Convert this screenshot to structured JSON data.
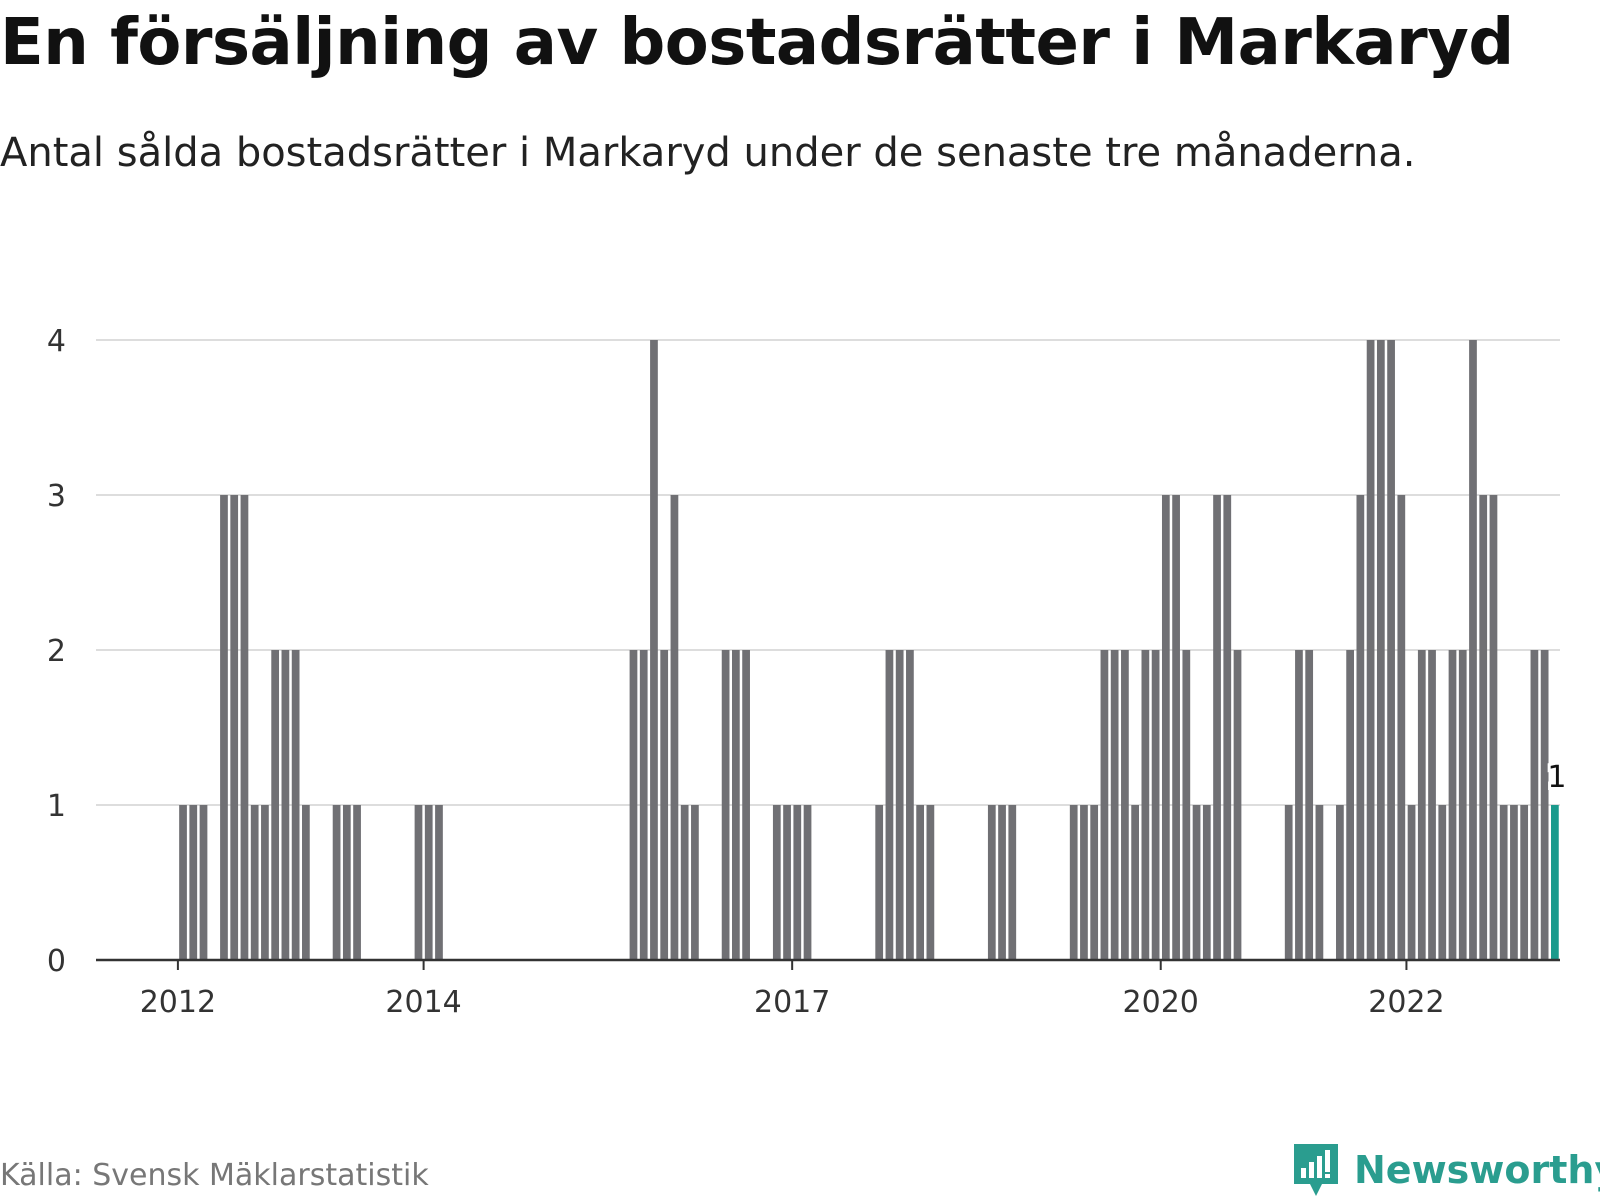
{
  "title": "En försäljning av bostadsrätter i Markaryd",
  "subtitle": "Antal sålda bostadsrätter i Markaryd under de senaste tre månaderna.",
  "source": "Källa: Svensk Mäklarstatistik",
  "brand": {
    "name": "Newsworthy",
    "icon": "newsworthy-logo-icon",
    "color": "#2a9d8f"
  },
  "colors": {
    "bar": "#707074",
    "highlight": "#1a9a8c",
    "grid": "#dddddd",
    "axis": "#333333"
  },
  "chart_data": {
    "type": "bar",
    "x_type": "month",
    "x_range": [
      "2011-05",
      "2023-02"
    ],
    "y_ticks": [
      0,
      1,
      2,
      3,
      4
    ],
    "x_ticks": [
      "2012",
      "2014",
      "2017",
      "2020",
      "2022"
    ],
    "ylim": [
      0,
      4
    ],
    "grid": true,
    "highlight_label": "1",
    "bars": [
      {
        "x": "2012-01",
        "y": 1
      },
      {
        "x": "2012-02",
        "y": 1
      },
      {
        "x": "2012-03",
        "y": 1
      },
      {
        "x": "2012-05",
        "y": 3
      },
      {
        "x": "2012-06",
        "y": 3
      },
      {
        "x": "2012-07",
        "y": 3
      },
      {
        "x": "2012-08",
        "y": 1
      },
      {
        "x": "2012-09",
        "y": 1
      },
      {
        "x": "2012-10",
        "y": 2
      },
      {
        "x": "2012-11",
        "y": 2
      },
      {
        "x": "2012-12",
        "y": 2
      },
      {
        "x": "2013-01",
        "y": 1
      },
      {
        "x": "2013-04",
        "y": 1
      },
      {
        "x": "2013-05",
        "y": 1
      },
      {
        "x": "2013-06",
        "y": 1
      },
      {
        "x": "2013-12",
        "y": 1
      },
      {
        "x": "2014-01",
        "y": 1
      },
      {
        "x": "2014-02",
        "y": 1
      },
      {
        "x": "2015-09",
        "y": 2
      },
      {
        "x": "2015-10",
        "y": 2
      },
      {
        "x": "2015-11",
        "y": 4
      },
      {
        "x": "2015-12",
        "y": 2
      },
      {
        "x": "2016-01",
        "y": 3
      },
      {
        "x": "2016-02",
        "y": 1
      },
      {
        "x": "2016-03",
        "y": 1
      },
      {
        "x": "2016-06",
        "y": 2
      },
      {
        "x": "2016-07",
        "y": 2
      },
      {
        "x": "2016-08",
        "y": 2
      },
      {
        "x": "2016-11",
        "y": 1
      },
      {
        "x": "2016-12",
        "y": 1
      },
      {
        "x": "2017-01",
        "y": 1
      },
      {
        "x": "2017-02",
        "y": 1
      },
      {
        "x": "2017-09",
        "y": 1
      },
      {
        "x": "2017-10",
        "y": 2
      },
      {
        "x": "2017-11",
        "y": 2
      },
      {
        "x": "2017-12",
        "y": 2
      },
      {
        "x": "2018-01",
        "y": 1
      },
      {
        "x": "2018-02",
        "y": 1
      },
      {
        "x": "2018-08",
        "y": 1
      },
      {
        "x": "2018-09",
        "y": 1
      },
      {
        "x": "2018-10",
        "y": 1
      },
      {
        "x": "2019-04",
        "y": 1
      },
      {
        "x": "2019-05",
        "y": 1
      },
      {
        "x": "2019-06",
        "y": 1
      },
      {
        "x": "2019-07",
        "y": 2
      },
      {
        "x": "2019-08",
        "y": 2
      },
      {
        "x": "2019-09",
        "y": 2
      },
      {
        "x": "2019-10",
        "y": 1
      },
      {
        "x": "2019-11",
        "y": 2
      },
      {
        "x": "2019-12",
        "y": 2
      },
      {
        "x": "2020-01",
        "y": 3
      },
      {
        "x": "2020-02",
        "y": 3
      },
      {
        "x": "2020-03",
        "y": 2
      },
      {
        "x": "2020-04",
        "y": 1
      },
      {
        "x": "2020-05",
        "y": 1
      },
      {
        "x": "2020-06",
        "y": 3
      },
      {
        "x": "2020-07",
        "y": 3
      },
      {
        "x": "2020-08",
        "y": 2
      },
      {
        "x": "2021-01",
        "y": 1
      },
      {
        "x": "2021-02",
        "y": 2
      },
      {
        "x": "2021-03",
        "y": 2
      },
      {
        "x": "2021-04",
        "y": 1
      },
      {
        "x": "2021-06",
        "y": 1
      },
      {
        "x": "2021-07",
        "y": 2
      },
      {
        "x": "2021-08",
        "y": 3
      },
      {
        "x": "2021-09",
        "y": 4
      },
      {
        "x": "2021-10",
        "y": 4
      },
      {
        "x": "2021-11",
        "y": 4
      },
      {
        "x": "2021-12",
        "y": 3
      },
      {
        "x": "2022-01",
        "y": 1
      },
      {
        "x": "2022-02",
        "y": 2
      },
      {
        "x": "2022-03",
        "y": 2
      },
      {
        "x": "2022-04",
        "y": 1
      },
      {
        "x": "2022-05",
        "y": 2
      },
      {
        "x": "2022-06",
        "y": 2
      },
      {
        "x": "2022-07",
        "y": 4
      },
      {
        "x": "2022-08",
        "y": 3
      },
      {
        "x": "2022-09",
        "y": 3
      },
      {
        "x": "2022-10",
        "y": 1
      },
      {
        "x": "2022-11",
        "y": 1
      },
      {
        "x": "2022-12",
        "y": 1
      },
      {
        "x": "2023-01",
        "y": 2
      },
      {
        "x": "2023-02",
        "y": 2
      },
      {
        "x": "2023-03",
        "y": 1,
        "highlight": true
      }
    ]
  }
}
